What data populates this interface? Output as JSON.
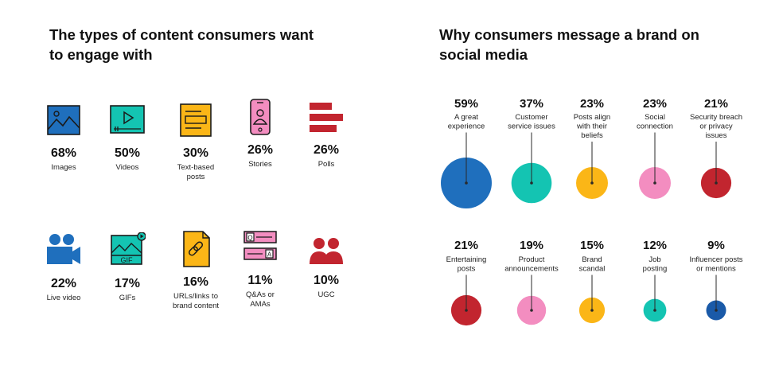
{
  "left_title": [
    "The types of content consumers want",
    "to engage with"
  ],
  "right_title": [
    "Why consumers message a brand on",
    "social media"
  ],
  "content_types": [
    {
      "icon": "image-icon",
      "pct": "68%",
      "label": [
        "Images"
      ]
    },
    {
      "icon": "video-icon",
      "pct": "50%",
      "label": [
        "Videos"
      ]
    },
    {
      "icon": "text-post-icon",
      "pct": "30%",
      "label": [
        "Text-based",
        "posts"
      ]
    },
    {
      "icon": "stories-phone-icon",
      "pct": "26%",
      "label": [
        "Stories"
      ]
    },
    {
      "icon": "poll-icon",
      "pct": "26%",
      "label": [
        "Polls"
      ]
    },
    {
      "icon": "live-video-icon",
      "pct": "22%",
      "label": [
        "Live video"
      ]
    },
    {
      "icon": "gif-icon",
      "pct": "17%",
      "label": [
        "GIFs"
      ]
    },
    {
      "icon": "link-document-icon",
      "pct": "16%",
      "label": [
        "URLs/links to",
        "brand content"
      ]
    },
    {
      "icon": "qa-icon",
      "pct": "11%",
      "label": [
        "Q&As or",
        "AMAs"
      ]
    },
    {
      "icon": "ugc-users-icon",
      "pct": "10%",
      "label": [
        "UGC"
      ]
    }
  ],
  "colors": {
    "blue": "#1f6fbd",
    "teal": "#14c4b2",
    "yellow": "#fbb617",
    "pink": "#f38dc0",
    "red": "#c2252f",
    "dark_blue": "#1a5aa8",
    "line": "#2a2a2a"
  },
  "chart_data": {
    "type": "bubble",
    "series": [
      {
        "label": [
          "A great",
          "experience"
        ],
        "value": 59,
        "color": "#1f6fbd"
      },
      {
        "label": [
          "Customer",
          "service issues"
        ],
        "value": 37,
        "color": "#14c4b2"
      },
      {
        "label": [
          "Posts align",
          "with their",
          "beliefs"
        ],
        "value": 23,
        "color": "#fbb617"
      },
      {
        "label": [
          "Social",
          "connection"
        ],
        "value": 23,
        "color": "#f38dc0"
      },
      {
        "label": [
          "Security breach",
          "or privacy",
          "issues"
        ],
        "value": 21,
        "color": "#c2252f"
      },
      {
        "label": [
          "Entertaining",
          "posts"
        ],
        "value": 21,
        "color": "#c2252f"
      },
      {
        "label": [
          "Product",
          "announcements"
        ],
        "value": 19,
        "color": "#f38dc0"
      },
      {
        "label": [
          "Brand",
          "scandal"
        ],
        "value": 15,
        "color": "#fbb617"
      },
      {
        "label": [
          "Job",
          "posting"
        ],
        "value": 12,
        "color": "#14c4b2"
      },
      {
        "label": [
          "Influencer posts",
          "or mentions"
        ],
        "value": 9,
        "color": "#1a5aa8"
      }
    ]
  }
}
